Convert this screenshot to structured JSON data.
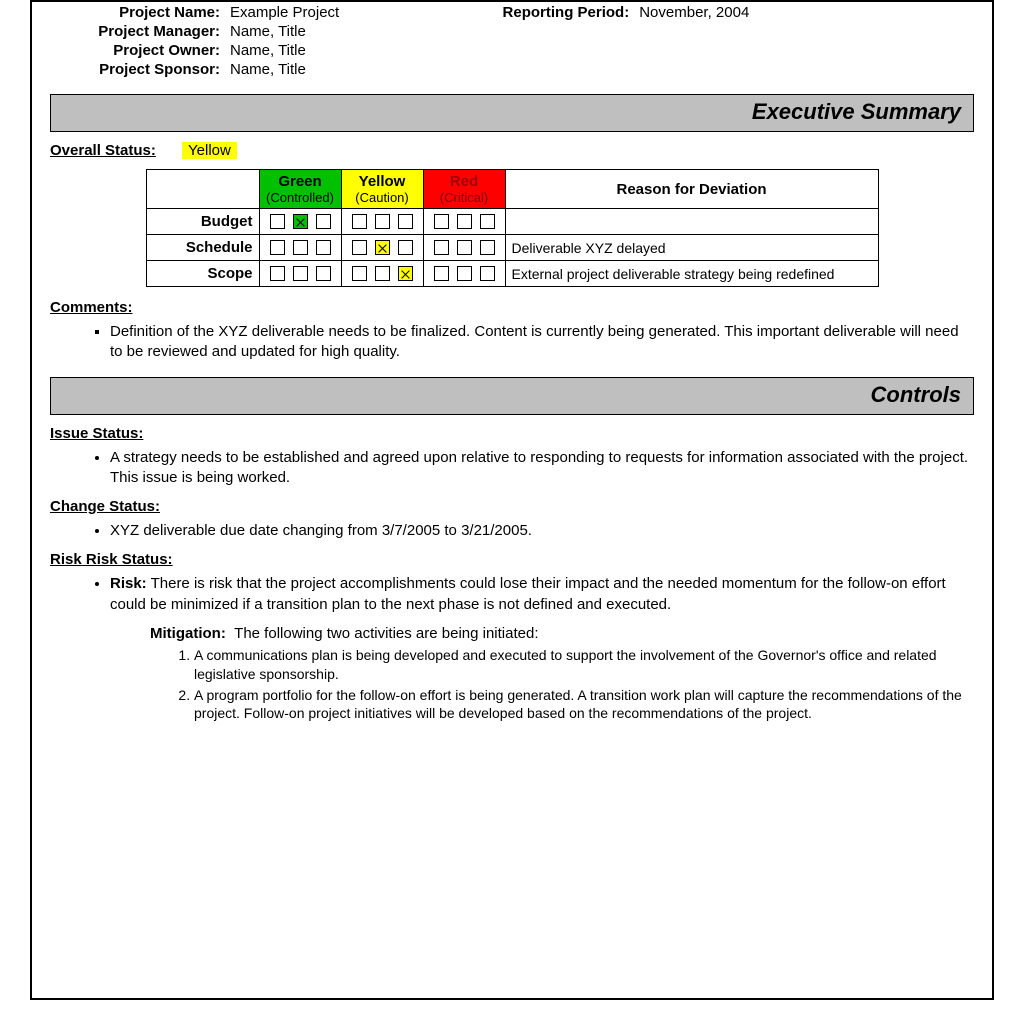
{
  "colors": {
    "section_bar_bg": "#bfbfbf",
    "border": "#000000",
    "highlight_yellow": "#ffff00",
    "green": "#00c000",
    "yellow": "#ffff00",
    "red": "#ff0000"
  },
  "header": {
    "project_name_label": "Project Name:",
    "project_name": "Example Project",
    "reporting_period_label": "Reporting Period:",
    "reporting_period": "November, 2004",
    "project_manager_label": "Project Manager:",
    "project_manager": "Name, Title",
    "project_owner_label": "Project Owner:",
    "project_owner": "Name, Title",
    "project_sponsor_label": "Project Sponsor:",
    "project_sponsor": "Name, Title"
  },
  "sections": {
    "executive_summary": "Executive Summary",
    "controls": "Controls"
  },
  "overall": {
    "label": "Overall Status:",
    "value": "Yellow",
    "highlight": "yellow"
  },
  "status_table": {
    "columns": {
      "green": {
        "title": "Green",
        "sub": "(Controlled)",
        "bg": "#00c000",
        "key": "green"
      },
      "yellow": {
        "title": "Yellow",
        "sub": "(Caution)",
        "bg": "#ffff00",
        "key": "yellow"
      },
      "red": {
        "title": "Red",
        "sub": "(Critical)",
        "bg": "#ff0000",
        "key": "red"
      },
      "reason": {
        "title": "Reason for Deviation"
      }
    },
    "rows": [
      {
        "label": "Budget",
        "green": [
          false,
          true,
          false
        ],
        "yellow": [
          false,
          false,
          false
        ],
        "red": [
          false,
          false,
          false
        ],
        "checked_color": "green",
        "reason": ""
      },
      {
        "label": "Schedule",
        "green": [
          false,
          false,
          false
        ],
        "yellow": [
          false,
          true,
          false
        ],
        "red": [
          false,
          false,
          false
        ],
        "checked_color": "yellow",
        "reason": "Deliverable XYZ delayed"
      },
      {
        "label": "Scope",
        "green": [
          false,
          false,
          false
        ],
        "yellow": [
          false,
          false,
          true
        ],
        "red": [
          false,
          false,
          false
        ],
        "checked_color": "yellow",
        "reason": "External project deliverable strategy being redefined"
      }
    ]
  },
  "comments": {
    "heading": "Comments:",
    "items": [
      "Definition of the XYZ deliverable needs to be finalized.  Content is currently being generated.  This important deliverable will need to be reviewed and updated for high quality."
    ]
  },
  "issue_status": {
    "heading": "Issue Status:",
    "items": [
      "A strategy needs to be established and agreed upon relative to responding to requests for information associated with the project.  This issue is being worked."
    ]
  },
  "change_status": {
    "heading": "Change Status:",
    "items": [
      "XYZ deliverable due date changing from 3/7/2005 to 3/21/2005."
    ]
  },
  "risk_status": {
    "heading": "Risk Status:",
    "risk_label": "Risk:",
    "risk_text": "There is risk that the project accomplishments could lose their impact and the needed momentum for the follow-on effort could be minimized if a transition plan to the next phase is not defined and executed.",
    "mitigation_label": "Mitigation:",
    "mitigation_intro": "The following two activities are being initiated:",
    "mitigation_items": [
      "A communications plan is being developed and executed to support the involvement of the Governor's office and related legislative sponsorship.",
      "A program portfolio for the follow-on effort is being generated. A transition work plan will capture the recommendations of the project. Follow-on project initiatives will be developed based on the recommendations of the project."
    ]
  }
}
